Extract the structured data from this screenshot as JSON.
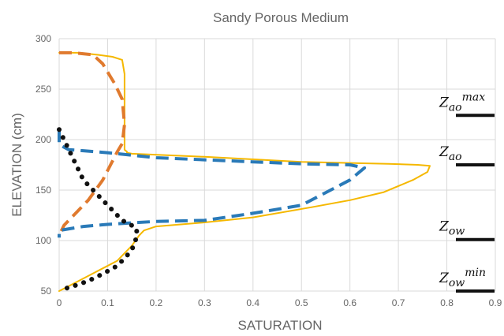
{
  "chart_data": {
    "type": "line",
    "title": "Sandy Porous Medium",
    "xlabel": "SATURATION",
    "ylabel": "ELEVATION (cm)",
    "xlim": [
      0,
      0.9
    ],
    "ylim": [
      50,
      300
    ],
    "xticks": [
      "0",
      "0.1",
      "0.2",
      "0.3",
      "0.4",
      "0.5",
      "0.6",
      "0.7",
      "0.8",
      "0.9"
    ],
    "yticks": [
      "50",
      "100",
      "150",
      "200",
      "250",
      "300"
    ],
    "grid": true,
    "colors": {
      "yellow": "#f5b800",
      "orange": "#e07a2e",
      "blue": "#2a7ab8",
      "black": "#111111",
      "grid": "#d9d9d9",
      "axis_text": "#666666",
      "marker": "#111111"
    },
    "series": [
      {
        "style": "solid",
        "color": "#f5b800",
        "x": [
          0.0,
          0.04,
          0.08,
          0.11,
          0.13,
          0.135,
          0.135,
          0.14,
          0.14,
          0.15,
          0.3,
          0.5,
          0.68,
          0.74,
          0.765,
          0.76,
          0.73,
          0.67,
          0.6,
          0.52,
          0.4,
          0.3,
          0.2,
          0.175,
          0.165,
          0.15,
          0.12,
          0.08,
          0.04,
          0.0
        ],
        "y": [
          286,
          286,
          284,
          282,
          279,
          265,
          190,
          188,
          187,
          186,
          183,
          178,
          176,
          175,
          174,
          168,
          160,
          148,
          140,
          133,
          123,
          118,
          114,
          110,
          105,
          95,
          80,
          70,
          60,
          50
        ]
      },
      {
        "style": "dashed",
        "color": "#e07a2e",
        "x": [
          0.0,
          0.03,
          0.07,
          0.09,
          0.105,
          0.115,
          0.13,
          0.135,
          0.13,
          0.12,
          0.09,
          0.06,
          0.03,
          0.01,
          0.0
        ],
        "y": [
          286,
          286,
          284,
          275,
          263,
          255,
          240,
          215,
          196,
          188,
          160,
          140,
          125,
          115,
          105
        ]
      },
      {
        "style": "dashed",
        "color": "#2a7ab8",
        "x": [
          0.0,
          0.0,
          0.02,
          0.05,
          0.1,
          0.2,
          0.3,
          0.4,
          0.5,
          0.6,
          0.63,
          0.6,
          0.5,
          0.4,
          0.3,
          0.2,
          0.1,
          0.05,
          0.0,
          0.0
        ],
        "y": [
          210,
          195,
          190,
          189,
          187,
          182,
          180,
          178,
          176,
          175,
          172,
          160,
          135,
          127,
          120,
          119,
          116,
          114,
          110,
          103
        ]
      },
      {
        "style": "dotted",
        "color": "#111111",
        "x": [
          0.0,
          0.005,
          0.01,
          0.02,
          0.03,
          0.04,
          0.05,
          0.07,
          0.09,
          0.11,
          0.13,
          0.15,
          0.16,
          0.16,
          0.155,
          0.14,
          0.12,
          0.09,
          0.06,
          0.03,
          0.01,
          0.0
        ],
        "y": [
          210,
          205,
          200,
          190,
          180,
          170,
          160,
          150,
          140,
          130,
          120,
          115,
          112,
          105,
          95,
          85,
          75,
          67,
          60,
          55,
          52,
          50
        ]
      }
    ],
    "annotations": [
      {
        "text": "Z",
        "sub": "ao",
        "sup": "max",
        "level": 224
      },
      {
        "text": "Z",
        "sub": "ao",
        "sup": "",
        "level": 175
      },
      {
        "text": "Z",
        "sub": "ow",
        "sup": "",
        "level": 101
      },
      {
        "text": "Z",
        "sub": "ow",
        "sup": "min",
        "level": 50
      }
    ]
  }
}
